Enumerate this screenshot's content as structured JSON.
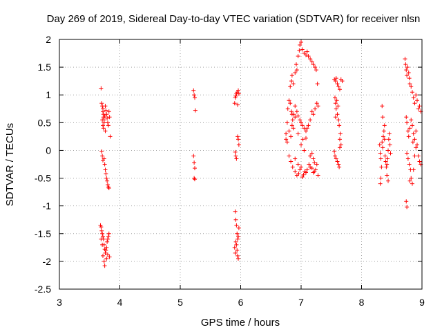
{
  "chart_data": {
    "type": "scatter",
    "title": "Day 269 of 2019, Sidereal Day-to-day VTEC variation (SDTVAR) for receiver nlsn",
    "xlabel": "GPS time / hours",
    "ylabel": "SDTVAR / TECUs",
    "xlim": [
      3,
      9
    ],
    "ylim": [
      -2.5,
      2
    ],
    "xticks": [
      3,
      4,
      5,
      6,
      7,
      8,
      9
    ],
    "xtick_labels": [
      "3",
      "4",
      "5",
      "6",
      "7",
      "8",
      "9"
    ],
    "yticks": [
      2,
      1.5,
      1,
      0.5,
      0,
      -0.5,
      -1,
      -1.5,
      -2,
      -2.5
    ],
    "ytick_labels": [
      "2",
      "1.5",
      "1",
      "0.5",
      "0",
      "-0.5",
      "-1",
      "-1.5",
      "-2",
      "-2.5"
    ],
    "grid": true,
    "marker": "+",
    "color": "#ff0000",
    "series": [
      {
        "name": "SDTVAR",
        "points": [
          [
            3.69,
            1.12
          ],
          [
            3.7,
            0.85
          ],
          [
            3.71,
            0.8
          ],
          [
            3.72,
            0.75
          ],
          [
            3.72,
            0.7
          ],
          [
            3.73,
            0.65
          ],
          [
            3.73,
            0.6
          ],
          [
            3.74,
            0.55
          ],
          [
            3.74,
            0.5
          ],
          [
            3.75,
            0.62
          ],
          [
            3.76,
            0.8
          ],
          [
            3.77,
            0.72
          ],
          [
            3.78,
            0.65
          ],
          [
            3.79,
            0.58
          ],
          [
            3.8,
            0.5
          ],
          [
            3.81,
            0.45
          ],
          [
            3.82,
            0.7
          ],
          [
            3.83,
            0.6
          ],
          [
            3.84,
            0.25
          ],
          [
            3.71,
            0.55
          ],
          [
            3.72,
            0.45
          ],
          [
            3.73,
            0.4
          ],
          [
            3.76,
            0.35
          ],
          [
            3.7,
            -0.02
          ],
          [
            3.71,
            -0.1
          ],
          [
            3.72,
            -0.18
          ],
          [
            3.74,
            -0.15
          ],
          [
            3.75,
            -0.25
          ],
          [
            3.76,
            -0.35
          ],
          [
            3.77,
            -0.42
          ],
          [
            3.78,
            -0.5
          ],
          [
            3.79,
            -0.55
          ],
          [
            3.8,
            -0.62
          ],
          [
            3.81,
            -0.66
          ],
          [
            3.82,
            -0.68
          ],
          [
            3.68,
            -1.35
          ],
          [
            3.69,
            -1.38
          ],
          [
            3.7,
            -1.45
          ],
          [
            3.71,
            -1.5
          ],
          [
            3.72,
            -1.55
          ],
          [
            3.73,
            -1.6
          ],
          [
            3.74,
            -1.7
          ],
          [
            3.75,
            -1.78
          ],
          [
            3.76,
            -1.85
          ],
          [
            3.77,
            -1.8
          ],
          [
            3.78,
            -1.75
          ],
          [
            3.79,
            -1.65
          ],
          [
            3.8,
            -1.6
          ],
          [
            3.81,
            -1.55
          ],
          [
            3.82,
            -1.5
          ],
          [
            3.72,
            -1.9
          ],
          [
            3.74,
            -2.0
          ],
          [
            3.75,
            -2.08
          ],
          [
            3.78,
            -1.95
          ],
          [
            3.8,
            -1.88
          ],
          [
            3.83,
            -1.92
          ],
          [
            3.69,
            -1.6
          ],
          [
            3.71,
            -1.7
          ],
          [
            5.22,
            1.08
          ],
          [
            5.23,
            1.0
          ],
          [
            5.24,
            0.95
          ],
          [
            5.25,
            0.72
          ],
          [
            5.22,
            -0.1
          ],
          [
            5.23,
            -0.22
          ],
          [
            5.24,
            -0.32
          ],
          [
            5.23,
            -0.5
          ],
          [
            5.24,
            -0.52
          ],
          [
            5.9,
            0.85
          ],
          [
            5.91,
            0.95
          ],
          [
            5.92,
            0.98
          ],
          [
            5.93,
            1.02
          ],
          [
            5.94,
            1.05
          ],
          [
            5.95,
            0.82
          ],
          [
            5.96,
            1.08
          ],
          [
            5.97,
            1.02
          ],
          [
            5.91,
            -0.03
          ],
          [
            5.92,
            -0.1
          ],
          [
            5.93,
            -0.15
          ],
          [
            5.95,
            0.25
          ],
          [
            5.96,
            0.2
          ],
          [
            5.97,
            0.1
          ],
          [
            5.91,
            -1.1
          ],
          [
            5.92,
            -1.25
          ],
          [
            5.93,
            -1.35
          ],
          [
            5.94,
            -1.5
          ],
          [
            5.92,
            -1.65
          ],
          [
            5.93,
            -1.7
          ],
          [
            5.95,
            -1.6
          ],
          [
            5.96,
            -1.55
          ],
          [
            5.94,
            -1.8
          ],
          [
            5.95,
            -1.9
          ],
          [
            5.96,
            -1.95
          ],
          [
            5.9,
            -1.75
          ],
          [
            5.91,
            -1.85
          ],
          [
            5.97,
            -1.4
          ],
          [
            6.75,
            0.3
          ],
          [
            6.77,
            0.5
          ],
          [
            6.78,
            0.75
          ],
          [
            6.8,
            0.9
          ],
          [
            6.82,
            0.85
          ],
          [
            6.84,
            0.7
          ],
          [
            6.86,
            0.55
          ],
          [
            6.88,
            0.65
          ],
          [
            6.9,
            0.8
          ],
          [
            6.75,
            0.2
          ],
          [
            6.77,
            0.15
          ],
          [
            6.8,
            0.35
          ],
          [
            6.83,
            0.25
          ],
          [
            6.85,
            0.45
          ],
          [
            6.87,
            0.4
          ],
          [
            6.82,
            1.15
          ],
          [
            6.84,
            1.25
          ],
          [
            6.85,
            1.35
          ],
          [
            6.87,
            1.2
          ],
          [
            6.9,
            1.4
          ],
          [
            6.92,
            1.55
          ],
          [
            6.93,
            1.45
          ],
          [
            6.95,
            1.7
          ],
          [
            6.97,
            1.8
          ],
          [
            6.98,
            1.9
          ],
          [
            7.0,
            1.95
          ],
          [
            7.02,
            1.82
          ],
          [
            7.05,
            1.75
          ],
          [
            7.08,
            1.72
          ],
          [
            7.1,
            1.78
          ],
          [
            7.12,
            1.7
          ],
          [
            7.15,
            1.65
          ],
          [
            7.18,
            1.6
          ],
          [
            7.2,
            1.55
          ],
          [
            7.23,
            1.5
          ],
          [
            7.25,
            1.45
          ],
          [
            7.27,
            1.2
          ],
          [
            6.85,
            0.65
          ],
          [
            6.9,
            0.6
          ],
          [
            6.93,
            0.7
          ],
          [
            6.95,
            0.62
          ],
          [
            6.98,
            0.55
          ],
          [
            7.0,
            0.5
          ],
          [
            7.02,
            0.45
          ],
          [
            7.05,
            0.4
          ],
          [
            7.08,
            0.35
          ],
          [
            7.1,
            0.4
          ],
          [
            7.12,
            0.45
          ],
          [
            7.15,
            0.55
          ],
          [
            7.18,
            0.7
          ],
          [
            7.2,
            0.65
          ],
          [
            7.23,
            0.75
          ],
          [
            7.26,
            0.85
          ],
          [
            7.28,
            0.8
          ],
          [
            6.95,
            0.3
          ],
          [
            7.0,
            0.1
          ],
          [
            7.03,
            0.2
          ],
          [
            7.05,
            0.0
          ],
          [
            7.08,
            0.22
          ],
          [
            6.8,
            -0.1
          ],
          [
            6.83,
            -0.2
          ],
          [
            6.86,
            -0.3
          ],
          [
            6.9,
            -0.38
          ],
          [
            6.93,
            -0.45
          ],
          [
            6.96,
            -0.42
          ],
          [
            6.98,
            -0.35
          ],
          [
            7.0,
            -0.3
          ],
          [
            7.02,
            -0.48
          ],
          [
            7.04,
            -0.44
          ],
          [
            7.06,
            -0.38
          ],
          [
            7.08,
            -0.4
          ],
          [
            7.1,
            -0.35
          ],
          [
            7.13,
            -0.25
          ],
          [
            7.15,
            -0.3
          ],
          [
            7.18,
            -0.32
          ],
          [
            7.2,
            -0.4
          ],
          [
            7.22,
            -0.38
          ],
          [
            7.24,
            -0.35
          ],
          [
            7.26,
            -0.25
          ],
          [
            7.28,
            -0.45
          ],
          [
            7.15,
            -0.1
          ],
          [
            7.18,
            -0.05
          ],
          [
            7.2,
            -0.15
          ],
          [
            7.22,
            -0.22
          ],
          [
            6.9,
            -0.15
          ],
          [
            6.95,
            -0.25
          ],
          [
            7.55,
            1.28
          ],
          [
            7.57,
            1.25
          ],
          [
            7.58,
            1.3
          ],
          [
            7.6,
            1.2
          ],
          [
            7.62,
            1.15
          ],
          [
            7.64,
            1.1
          ],
          [
            7.66,
            1.28
          ],
          [
            7.68,
            1.25
          ],
          [
            7.56,
            0.95
          ],
          [
            7.57,
            0.85
          ],
          [
            7.58,
            0.75
          ],
          [
            7.6,
            0.65
          ],
          [
            7.62,
            0.55
          ],
          [
            7.63,
            0.45
          ],
          [
            7.65,
            0.3
          ],
          [
            7.66,
            0.1
          ],
          [
            7.57,
            0.6
          ],
          [
            7.59,
            0.9
          ],
          [
            7.61,
            0.8
          ],
          [
            7.64,
            0.2
          ],
          [
            7.55,
            -0.02
          ],
          [
            7.56,
            -0.1
          ],
          [
            7.58,
            -0.15
          ],
          [
            7.6,
            -0.2
          ],
          [
            7.62,
            -0.25
          ],
          [
            7.63,
            -0.3
          ],
          [
            7.64,
            0.05
          ],
          [
            8.3,
            0.1
          ],
          [
            8.31,
            -0.05
          ],
          [
            8.32,
            -0.15
          ],
          [
            8.33,
            -0.3
          ],
          [
            8.32,
            -0.5
          ],
          [
            8.31,
            -0.6
          ],
          [
            8.34,
            0.15
          ],
          [
            8.35,
            0.05
          ],
          [
            8.36,
            0.25
          ],
          [
            8.37,
            0.35
          ],
          [
            8.38,
            0.2
          ],
          [
            8.39,
            -0.1
          ],
          [
            8.4,
            -0.2
          ],
          [
            8.41,
            -0.3
          ],
          [
            8.42,
            -0.25
          ],
          [
            8.43,
            -0.15
          ],
          [
            8.44,
            0.0
          ],
          [
            8.45,
            0.2
          ],
          [
            8.46,
            0.3
          ],
          [
            8.47,
            0.1
          ],
          [
            8.48,
            -0.05
          ],
          [
            8.34,
            0.8
          ],
          [
            8.35,
            0.6
          ],
          [
            8.38,
            0.45
          ],
          [
            8.42,
            -0.45
          ],
          [
            8.44,
            -0.55
          ],
          [
            8.72,
            1.65
          ],
          [
            8.73,
            1.55
          ],
          [
            8.74,
            1.45
          ],
          [
            8.75,
            1.35
          ],
          [
            8.76,
            1.5
          ],
          [
            8.78,
            1.4
          ],
          [
            8.79,
            1.3
          ],
          [
            8.8,
            1.2
          ],
          [
            8.82,
            1.15
          ],
          [
            8.84,
            1.05
          ],
          [
            8.86,
            0.95
          ],
          [
            8.88,
            0.85
          ],
          [
            8.9,
            1.0
          ],
          [
            8.92,
            0.9
          ],
          [
            8.94,
            0.75
          ],
          [
            8.96,
            0.8
          ],
          [
            8.98,
            0.7
          ],
          [
            8.74,
            0.6
          ],
          [
            8.75,
            0.5
          ],
          [
            8.77,
            0.35
          ],
          [
            8.78,
            0.25
          ],
          [
            8.8,
            0.4
          ],
          [
            8.82,
            0.55
          ],
          [
            8.84,
            0.45
          ],
          [
            8.86,
            0.3
          ],
          [
            8.88,
            0.2
          ],
          [
            8.9,
            0.35
          ],
          [
            8.92,
            0.1
          ],
          [
            8.94,
            -0.1
          ],
          [
            8.96,
            -0.2
          ],
          [
            8.98,
            -0.25
          ],
          [
            8.75,
            -0.05
          ],
          [
            8.77,
            -0.15
          ],
          [
            8.79,
            -0.25
          ],
          [
            8.81,
            -0.35
          ],
          [
            8.82,
            -0.5
          ],
          [
            8.84,
            -0.6
          ],
          [
            8.86,
            -0.35
          ],
          [
            8.88,
            -0.1
          ],
          [
            8.9,
            0.05
          ],
          [
            8.74,
            -0.92
          ],
          [
            8.75,
            -1.02
          ],
          [
            8.8,
            -0.55
          ],
          [
            8.85,
            0.15
          ]
        ]
      }
    ]
  }
}
